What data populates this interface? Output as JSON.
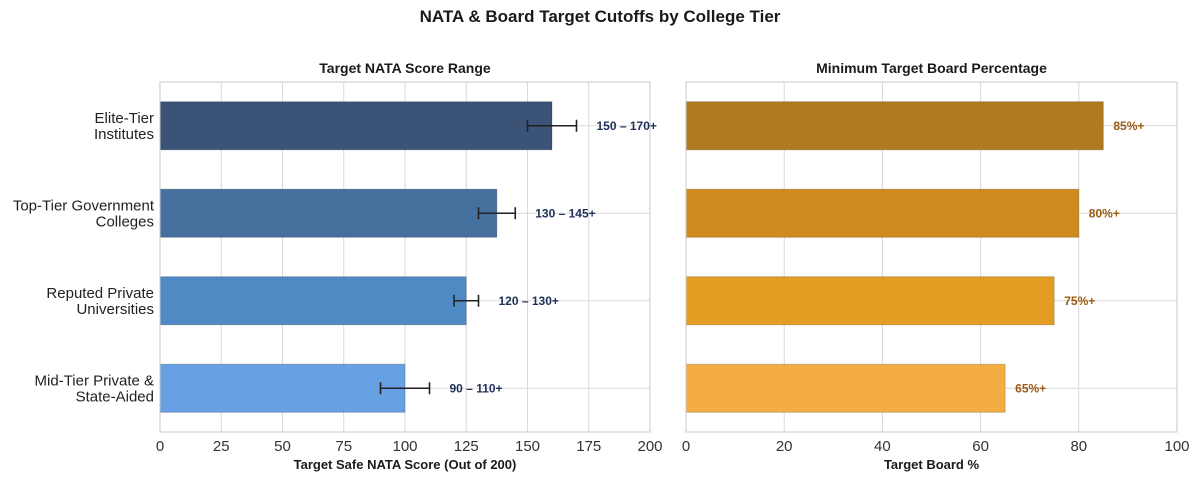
{
  "figure": {
    "title": "NATA & Board Target Cutoffs by College Tier"
  },
  "categories": [
    [
      "Elite-Tier",
      "Institutes"
    ],
    [
      "Top-Tier Government",
      "Colleges"
    ],
    [
      "Reputed Private",
      "Universities"
    ],
    [
      "Mid-Tier Private &",
      "State-Aided"
    ]
  ],
  "chart_data": [
    {
      "type": "bar",
      "orientation": "horizontal",
      "title": "Target NATA Score Range",
      "xlabel": "Target Safe NATA Score (Out of 200)",
      "ylabel": "",
      "xlim": [
        0,
        200
      ],
      "xticks": [
        0,
        25,
        50,
        75,
        100,
        125,
        150,
        175,
        200
      ],
      "grid": true,
      "categories": [
        "Elite-Tier Institutes",
        "Top-Tier Government Colleges",
        "Reputed Private Universities",
        "Mid-Tier Private & State-Aided"
      ],
      "values": [
        160,
        137.5,
        125,
        100
      ],
      "error_low": [
        150,
        130,
        120,
        90
      ],
      "error_high": [
        170,
        145,
        130,
        110
      ],
      "data_labels": [
        "150 – 170+",
        "130 – 145+",
        "120 – 130+",
        "90 – 110+"
      ],
      "colors": [
        "#3a5377",
        "#456f9c",
        "#4f8ac5",
        "#67a0e3"
      ],
      "label_color": "#1f2f57"
    },
    {
      "type": "bar",
      "orientation": "horizontal",
      "title": "Minimum Target Board Percentage",
      "xlabel": "Target Board %",
      "ylabel": "",
      "xlim": [
        0,
        100
      ],
      "xticks": [
        0,
        20,
        40,
        60,
        80,
        100
      ],
      "grid": true,
      "categories": [
        "Elite-Tier Institutes",
        "Top-Tier Government Colleges",
        "Reputed Private Universities",
        "Mid-Tier Private & State-Aided"
      ],
      "values": [
        85,
        80,
        75,
        65
      ],
      "data_labels": [
        "85%+",
        "80%+",
        "75%+",
        "65%+"
      ],
      "colors": [
        "#b07a22",
        "#cf8b1e",
        "#e29d22",
        "#f3ad43"
      ],
      "label_color": "#9a5a12"
    }
  ]
}
